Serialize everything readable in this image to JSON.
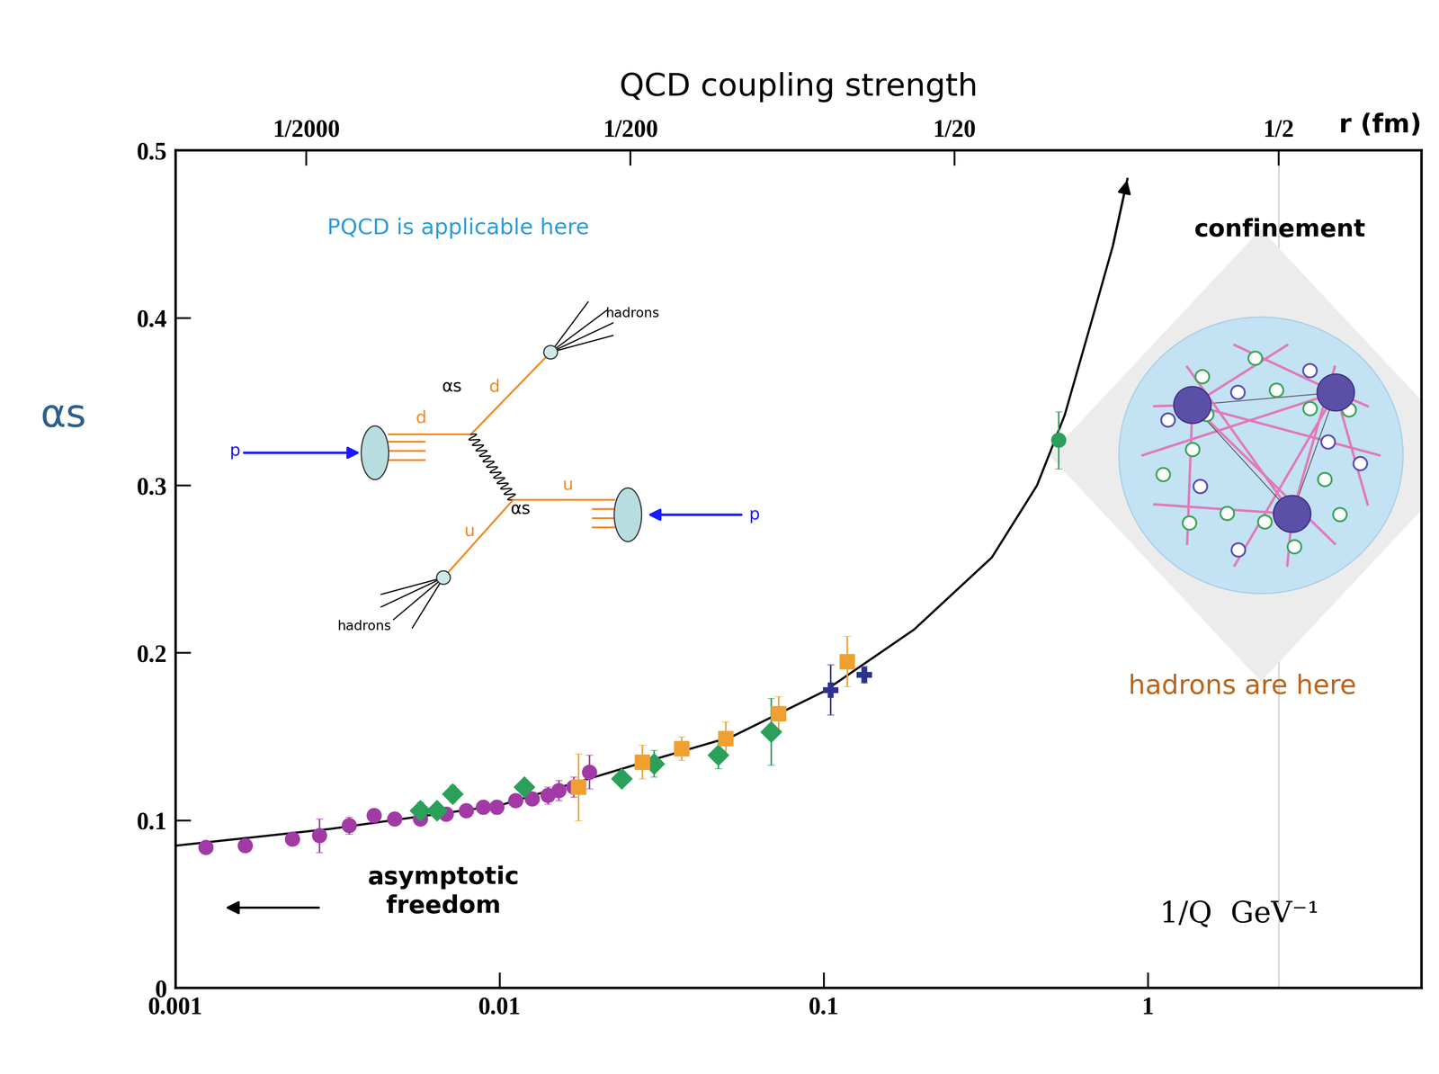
{
  "chart_data": {
    "type": "scatter",
    "title": "QCD coupling strength",
    "x_label": "1/Q  GeV⁻¹",
    "y_label": "αs",
    "x2_label": "r (fm)",
    "log": "x",
    "xlim": [
      0.001,
      7
    ],
    "ylim": [
      0,
      0.5
    ],
    "xticks": [
      0.001,
      0.01,
      0.1,
      1
    ],
    "yticks": [
      0,
      0.1,
      0.2,
      0.3,
      0.4,
      0.5
    ],
    "x2ticks": [
      {
        "value": 0.002534,
        "label": "1/2000"
      },
      {
        "value": 0.02534,
        "label": "1/200"
      },
      {
        "value": 0.2534,
        "label": "1/20"
      },
      {
        "value": 2.534,
        "label": "1/2"
      }
    ],
    "series": [
      {
        "type": "line",
        "color": "#000000",
        "x": [
          0.001,
          0.003,
          0.01,
          0.027,
          0.052,
          0.1,
          0.19,
          0.33,
          0.455,
          0.554,
          0.675,
          0.78,
          0.865
        ],
        "values": [
          0.085,
          0.095,
          0.109,
          0.134,
          0.15,
          0.177,
          0.214,
          0.257,
          0.3,
          0.342,
          0.4,
          0.443,
          0.483
        ]
      },
      {
        "type": "scatter",
        "color": "#a23aa6",
        "marker": "circle",
        "x": [
          0.00124,
          0.00164,
          0.00229,
          0.00278,
          0.00343,
          0.0041,
          0.00473,
          0.00569,
          0.00684,
          0.00789,
          0.0089,
          0.0098,
          0.0112,
          0.0126,
          0.0141,
          0.0152,
          0.0169,
          0.0189
        ],
        "values": [
          0.084,
          0.085,
          0.089,
          0.091,
          0.097,
          0.103,
          0.101,
          0.101,
          0.104,
          0.106,
          0.108,
          0.108,
          0.112,
          0.113,
          0.115,
          0.118,
          0.12,
          0.129
        ],
        "errors": [
          0.003,
          0.003,
          0.004,
          0.01,
          0.005,
          0.004,
          0.004,
          0.004,
          0.004,
          0.004,
          0.004,
          0.004,
          0.004,
          0.004,
          0.005,
          0.006,
          0.006,
          0.01
        ]
      },
      {
        "type": "scatter",
        "color": "#2aa05a",
        "marker": "diamond",
        "x": [
          0.00569,
          0.0064,
          0.00716,
          0.0119,
          0.0238,
          0.0299,
          0.0473,
          0.0688
        ],
        "values": [
          0.106,
          0.106,
          0.116,
          0.12,
          0.125,
          0.134,
          0.139,
          0.153
        ],
        "errors": [
          0.005,
          0.004,
          0.005,
          0.004,
          0.004,
          0.008,
          0.008,
          0.02
        ]
      },
      {
        "type": "scatter",
        "color": "#f0a030",
        "marker": "square",
        "x": [
          0.0175,
          0.0275,
          0.0364,
          0.0498,
          0.0724,
          0.118
        ],
        "values": [
          0.12,
          0.135,
          0.143,
          0.149,
          0.164,
          0.195
        ],
        "errors": [
          0.02,
          0.01,
          0.007,
          0.01,
          0.01,
          0.015
        ]
      },
      {
        "type": "scatter",
        "color": "#2c3192",
        "marker": "plus",
        "x": [
          0.105,
          0.133
        ],
        "values": [
          0.178,
          0.187
        ],
        "errors": [
          0.015,
          0.005
        ]
      },
      {
        "type": "scatter",
        "color": "#2aa05a",
        "marker": "circle",
        "x": [
          0.53
        ],
        "values": [
          0.327
        ],
        "errors": [
          0.017
        ]
      }
    ],
    "annotations": {
      "pqcd": "PQCD is applicable here",
      "confinement": "confinement",
      "asymptotic": "asymptotic\nfreedom",
      "hadrons": "hadrons are here"
    },
    "diagram": {
      "proton": "p",
      "quark_d": "d",
      "quark_u": "u",
      "coupling": "αs",
      "jets": "hadrons"
    }
  }
}
